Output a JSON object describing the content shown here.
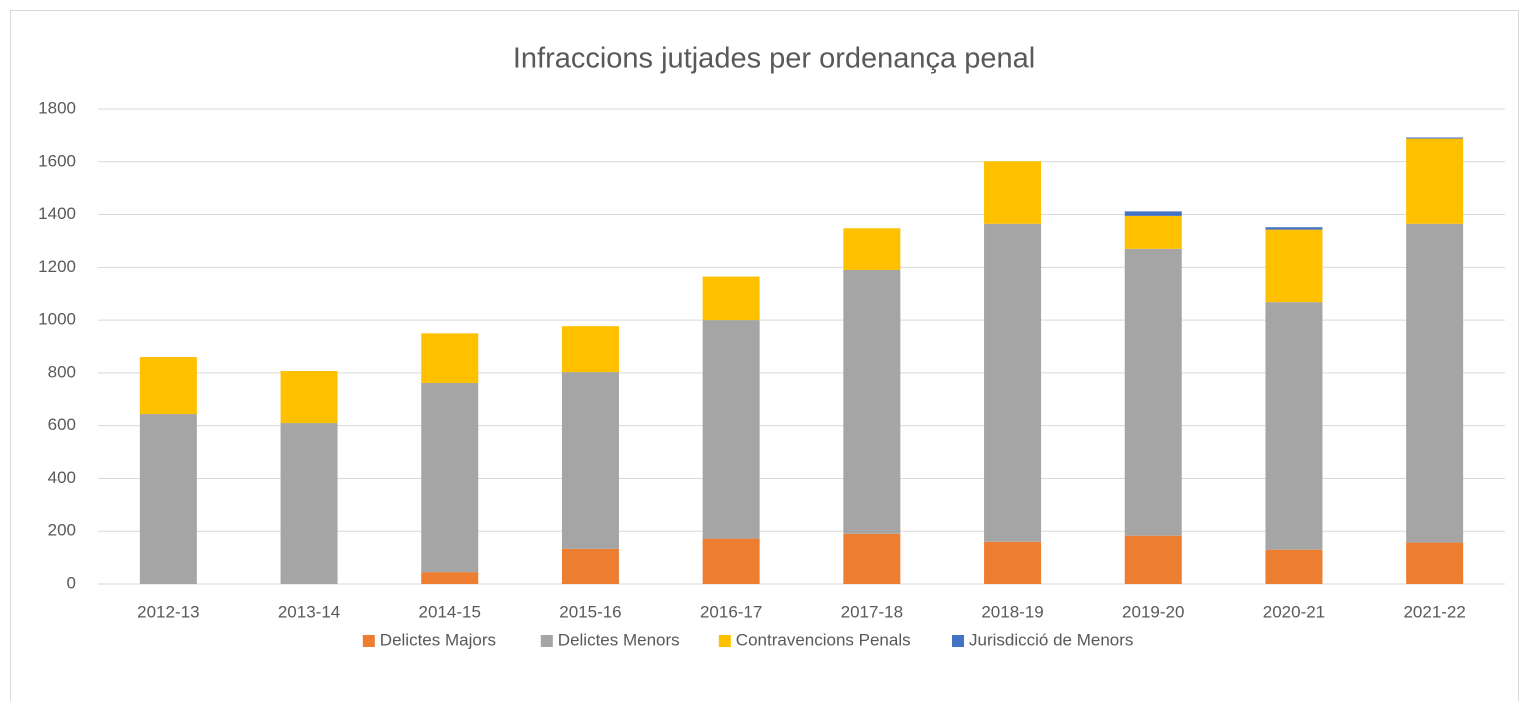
{
  "chart_data": {
    "type": "stacked_bar",
    "title": "Infraccions jutjades per ordenança penal",
    "categories": [
      "2012-13",
      "2013-14",
      "2014-15",
      "2015-16",
      "2016-17",
      "2017-18",
      "2018-19",
      "2019-20",
      "2020-21",
      "2021-22"
    ],
    "series": [
      {
        "name": "Delictes Majors",
        "color": "#ed7d31",
        "values": [
          0,
          0,
          45,
          133,
          172,
          190,
          160,
          183,
          130,
          157
        ]
      },
      {
        "name": "Delictes Menors",
        "color": "#a5a5a5",
        "values": [
          644,
          610,
          717,
          670,
          828,
          1000,
          1205,
          1087,
          938,
          1208
        ]
      },
      {
        "name": "Contravencions Penals",
        "color": "#ffc000",
        "values": [
          216,
          197,
          188,
          174,
          165,
          158,
          237,
          125,
          275,
          323
        ]
      },
      {
        "name": "Jurisdicció de Menors",
        "color": "#4472c4",
        "values": [
          0,
          0,
          0,
          0,
          0,
          0,
          0,
          17,
          9,
          4
        ]
      }
    ],
    "ylim": [
      0,
      1800
    ],
    "yticks": [
      0,
      200,
      400,
      600,
      800,
      1000,
      1200,
      1400,
      1600,
      1800
    ],
    "grid": true,
    "legend": "bottom"
  }
}
